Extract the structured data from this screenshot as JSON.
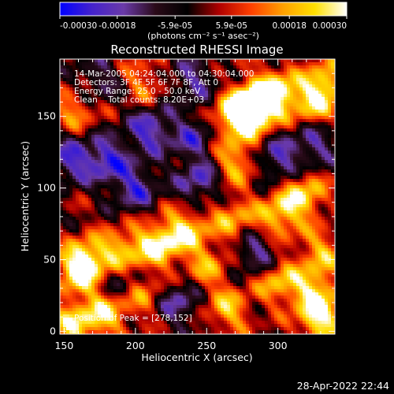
{
  "chart_data": {
    "type": "heatmap",
    "title": "Reconstructed RHESSI Image",
    "xlabel": "Heliocentric X (arcsec)",
    "ylabel": "Heliocentric Y (arcsec)",
    "xlim": [
      147,
      340
    ],
    "ylim": [
      -2,
      190
    ],
    "x_ticks": [
      150,
      200,
      250,
      300
    ],
    "y_ticks": [
      0,
      50,
      100,
      150
    ],
    "colorbar": {
      "min": -0.0003,
      "max": 0.0003,
      "tick_values": [
        -0.0003,
        -0.00018,
        -5.9e-05,
        5.9e-05,
        0.00018,
        0.0003
      ],
      "tick_labels": [
        "-0.00030",
        "-0.00018",
        "-5.9e-05",
        "5.9e-05",
        "0.00018",
        "0.00030"
      ],
      "units": "(photons cm⁻² s⁻¹ asec⁻²)",
      "colors": [
        "#0000ff",
        "#4422cc",
        "#6a3aa8",
        "#2a0a18",
        "#000000",
        "#b00000",
        "#ff4000",
        "#ffa000",
        "#ffe000",
        "#ffffff"
      ]
    },
    "peak": {
      "x": 278,
      "y": 152
    },
    "annotations": {
      "time_range": "14-Mar-2005 04:24:04.000 to 04:30:04.000",
      "detectors": "Detectors: 3F 4F 5F 6F 7F 8F, Att 0",
      "energy_range": "Energy Range: 25.0 - 50.0 keV",
      "method_counts": "Clean    Total counts: 8.20E+03",
      "peak_position": "Position of Peak = [278,152]"
    },
    "hotspots": [
      {
        "x": 285,
        "y": 158,
        "v": 1.0
      },
      {
        "x": 272,
        "y": 150,
        "v": 0.85
      },
      {
        "x": 300,
        "y": 168,
        "v": 0.6
      },
      {
        "x": 325,
        "y": 160,
        "v": 0.55
      },
      {
        "x": 335,
        "y": 175,
        "v": 0.5
      },
      {
        "x": 205,
        "y": 175,
        "v": 0.35
      },
      {
        "x": 158,
        "y": 155,
        "v": 0.4
      },
      {
        "x": 270,
        "y": 118,
        "v": 0.5
      },
      {
        "x": 318,
        "y": 95,
        "v": 0.6
      },
      {
        "x": 300,
        "y": 80,
        "v": 0.55
      },
      {
        "x": 268,
        "y": 78,
        "v": 0.45
      },
      {
        "x": 235,
        "y": 70,
        "v": 0.6
      },
      {
        "x": 215,
        "y": 60,
        "v": 0.65
      },
      {
        "x": 190,
        "y": 55,
        "v": 0.55
      },
      {
        "x": 165,
        "y": 50,
        "v": 0.6
      },
      {
        "x": 160,
        "y": 40,
        "v": 0.5
      },
      {
        "x": 250,
        "y": 45,
        "v": 0.4
      },
      {
        "x": 330,
        "y": 55,
        "v": 0.45
      },
      {
        "x": 300,
        "y": 35,
        "v": 0.5
      },
      {
        "x": 325,
        "y": 28,
        "v": 0.55
      },
      {
        "x": 330,
        "y": 8,
        "v": 0.7
      },
      {
        "x": 265,
        "y": 15,
        "v": 0.5
      },
      {
        "x": 205,
        "y": 25,
        "v": 0.4
      },
      {
        "x": 178,
        "y": 12,
        "v": 0.6
      },
      {
        "x": 155,
        "y": 5,
        "v": 0.55
      },
      {
        "x": 240,
        "y": 135,
        "v": -0.4
      },
      {
        "x": 210,
        "y": 140,
        "v": -0.55
      },
      {
        "x": 180,
        "y": 120,
        "v": -0.55
      },
      {
        "x": 155,
        "y": 120,
        "v": -0.5
      },
      {
        "x": 245,
        "y": 105,
        "v": -0.5
      },
      {
        "x": 200,
        "y": 100,
        "v": -0.5
      },
      {
        "x": 300,
        "y": 120,
        "v": -0.45
      },
      {
        "x": 325,
        "y": 130,
        "v": -0.4
      },
      {
        "x": 285,
        "y": 55,
        "v": -0.45
      },
      {
        "x": 230,
        "y": 20,
        "v": -0.45
      },
      {
        "x": 190,
        "y": 35,
        "v": -0.35
      },
      {
        "x": 240,
        "y": 175,
        "v": -0.4
      },
      {
        "x": 175,
        "y": 175,
        "v": -0.35
      }
    ]
  },
  "footer": {
    "timestamp": "28-Apr-2022 22:44"
  }
}
